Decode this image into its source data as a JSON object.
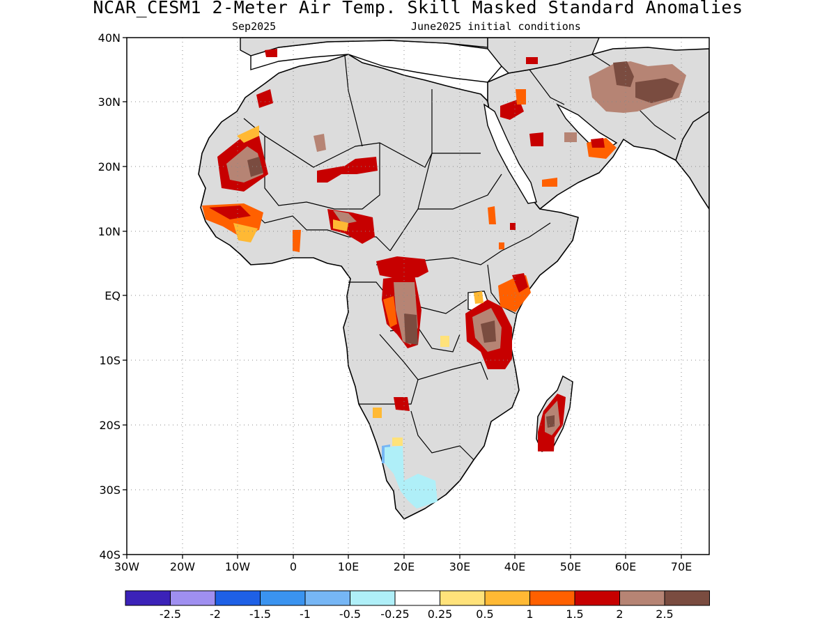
{
  "header": {
    "title": "NCAR_CESM1 2-Meter Air Temp. Skill Masked Standard Anomalies",
    "target_month": "Sep2025",
    "init_conditions": "June2025 initial conditions"
  },
  "map": {
    "lon_range": [
      -30,
      75
    ],
    "lat_range": [
      -40,
      40
    ],
    "lat_ticks": [
      "40N",
      "30N",
      "20N",
      "10N",
      "EQ",
      "10S",
      "20S",
      "30S",
      "40S"
    ],
    "lon_ticks": [
      "30W",
      "20W",
      "10W",
      "0",
      "10E",
      "20E",
      "30E",
      "40E",
      "50E",
      "60E",
      "70E"
    ],
    "grid": "dotted",
    "land_fill": "#dcdcdc",
    "ocean_fill": "#ffffff"
  },
  "colorbar": {
    "colors": [
      "#3b22b8",
      "#9f8ff0",
      "#1e60e6",
      "#3a93ef",
      "#76b6f5",
      "#afeff8",
      "#ffffff",
      "#ffe27a",
      "#ffb934",
      "#ff6000",
      "#c70000",
      "#b68474",
      "#7a4c40"
    ],
    "labels": [
      "-2.5",
      "-2",
      "-1.5",
      "-1",
      "-0.5",
      "-0.25",
      "0.25",
      "0.5",
      "1",
      "1.5",
      "2",
      "2.5"
    ]
  }
}
